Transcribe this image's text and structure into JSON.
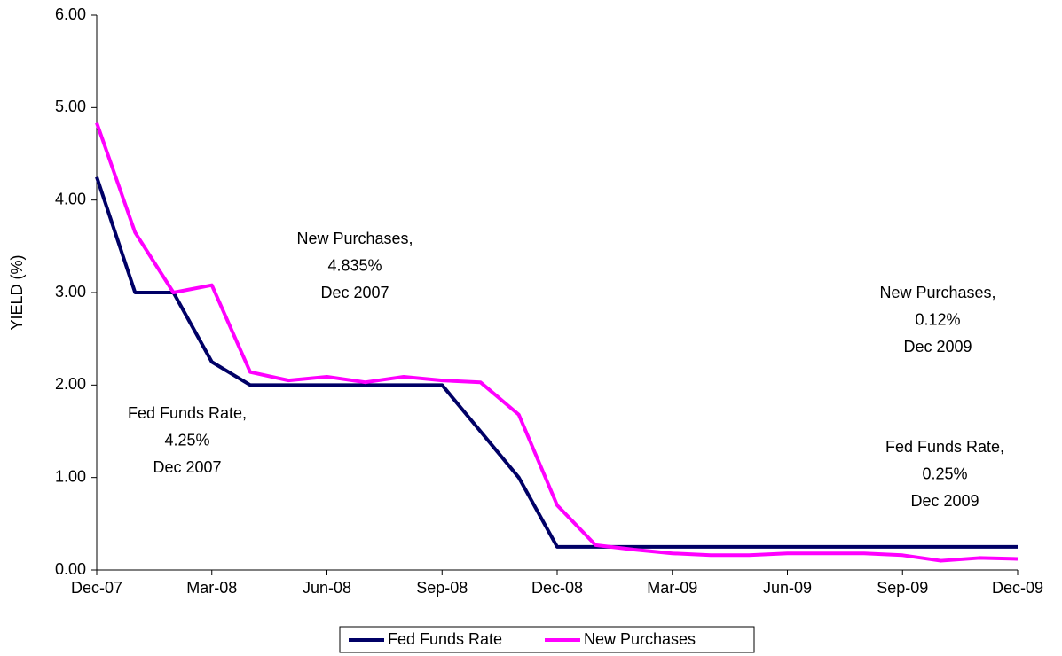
{
  "chart_data": {
    "type": "line",
    "y_label": "YIELD (%)",
    "categories": [
      "Dec-07",
      null,
      null,
      "Mar-08",
      null,
      null,
      "Jun-08",
      null,
      null,
      "Sep-08",
      null,
      null,
      "Dec-08",
      null,
      null,
      "Mar-09",
      null,
      null,
      "Jun-09",
      null,
      null,
      "Sep-09",
      null,
      null,
      "Dec-09"
    ],
    "series": [
      {
        "name": "Fed Funds Rate",
        "color": "#000066",
        "values": [
          4.25,
          3.0,
          3.0,
          2.25,
          2.0,
          2.0,
          2.0,
          2.0,
          2.0,
          2.0,
          1.5,
          1.0,
          0.25,
          0.25,
          0.25,
          0.25,
          0.25,
          0.25,
          0.25,
          0.25,
          0.25,
          0.25,
          0.25,
          0.25,
          0.25
        ]
      },
      {
        "name": "New Purchases",
        "color": "#ff00ff",
        "values": [
          4.835,
          3.65,
          3.0,
          3.08,
          2.14,
          2.05,
          2.09,
          2.03,
          2.09,
          2.05,
          2.03,
          1.68,
          0.7,
          0.27,
          0.22,
          0.18,
          0.16,
          0.16,
          0.18,
          0.18,
          0.18,
          0.16,
          0.1,
          0.13,
          0.12
        ]
      }
    ],
    "ylim": [
      0,
      6
    ],
    "yticks": [
      {
        "value": 0,
        "label": "0.00"
      },
      {
        "value": 1,
        "label": "1.00"
      },
      {
        "value": 2,
        "label": "2.00"
      },
      {
        "value": 3,
        "label": "3.00"
      },
      {
        "value": 4,
        "label": "4.00"
      },
      {
        "value": 5,
        "label": "5.00"
      },
      {
        "value": 6,
        "label": "6.00"
      }
    ],
    "legend": "bottom",
    "annotations": [
      [
        "New Purchases,",
        "4.835%",
        "Dec 2007"
      ],
      [
        "Fed Funds Rate,",
        "4.25%",
        "Dec 2007"
      ],
      [
        "New Purchases,",
        "0.12%",
        "Dec 2009"
      ],
      [
        "Fed Funds Rate,",
        "0.25%",
        "Dec 2009"
      ]
    ]
  }
}
